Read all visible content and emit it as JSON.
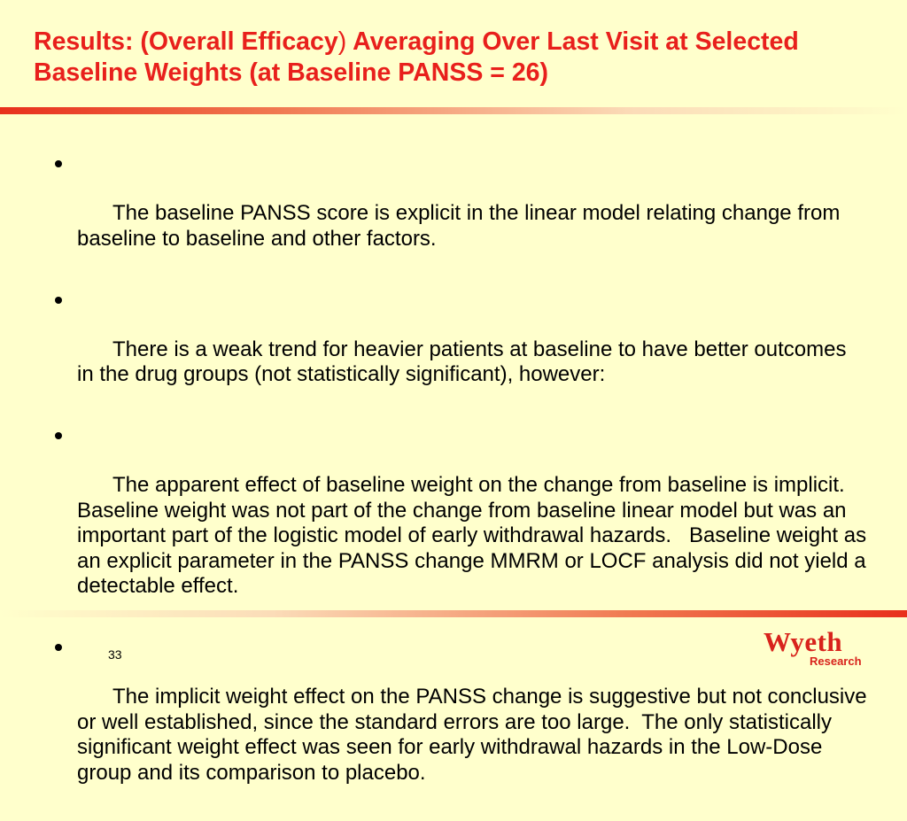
{
  "slide": {
    "title_part1": "Results: (Overall Efficacy",
    "title_paren": ")",
    "title_part2": " Averaging Over Last Visit at Selected Baseline Weights (at Baseline PANSS = 26)",
    "bullets": [
      "The baseline PANSS score is explicit in the linear model relating change from baseline to baseline and other factors.",
      "There is a weak trend for heavier patients at baseline to have better outcomes in the drug groups (not statistically significant), however:",
      "The apparent effect of baseline weight on the change from baseline is implicit.  Baseline weight was not part of the change from baseline linear model but was an important part of the logistic model of early withdrawal hazards.   Baseline weight as an explicit parameter in the PANSS change MMRM or LOCF analysis did not yield a detectable effect.",
      "The implicit weight effect on the PANSS change is suggestive but not conclusive or well established, since the standard errors are too large.  The only statistically significant weight effect was seen for early withdrawal hazards in the Low-Dose group and its comparison to placebo."
    ],
    "page_number": "33"
  },
  "logo": {
    "name": "Wyeth",
    "subtitle": "Research"
  },
  "colors": {
    "background": "#FFFFCC",
    "title": "#E8201C",
    "rule": "#E8301C",
    "logo": "#D8231C",
    "text": "#000000"
  }
}
